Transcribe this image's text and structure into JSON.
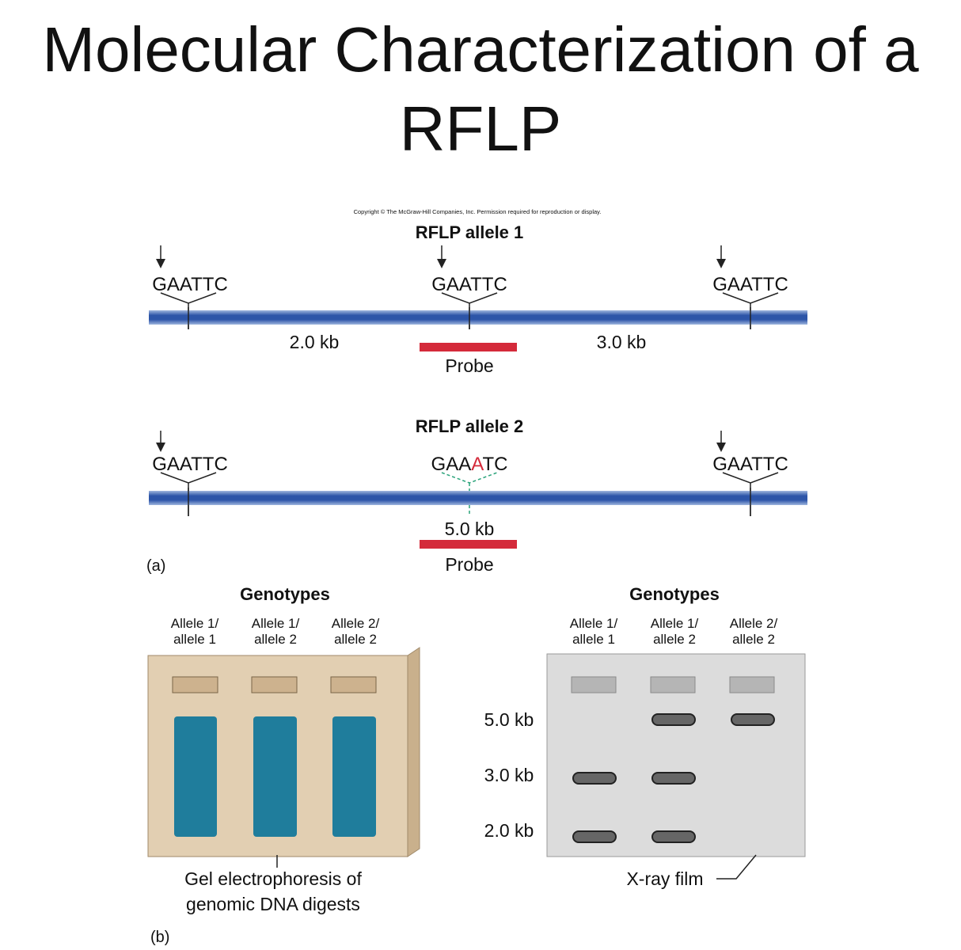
{
  "title": {
    "lines": [
      "Molecular Characterization of a",
      "RFLP"
    ]
  },
  "copyright": "Copyright © The McGraw-Hill Companies, Inc. Permission required for reproduction or display.",
  "panel_a": {
    "label": "(a)",
    "allele1": {
      "title": "RFLP allele 1",
      "sites": [
        "GAATTC",
        "GAATTC",
        "GAATTC"
      ],
      "fragments": [
        "2.0 kb",
        "3.0 kb"
      ],
      "probe": "Probe"
    },
    "allele2": {
      "title": "RFLP allele 2",
      "sites": [
        "GAATTC",
        "GAATTC"
      ],
      "mutated_site": [
        "GAA",
        "A",
        "TC"
      ],
      "fragment": "5.0 kb",
      "probe": "Probe"
    }
  },
  "panel_b": {
    "label": "(b)",
    "gel": {
      "heading": "Genotypes",
      "lanes": [
        [
          "Allele 1/",
          "allele 1"
        ],
        [
          "Allele 1/",
          "allele 2"
        ],
        [
          "Allele 2/",
          "allele 2"
        ]
      ],
      "caption": [
        "Gel electrophoresis of",
        "genomic DNA digests"
      ]
    },
    "film": {
      "heading": "Genotypes",
      "lanes": [
        [
          "Allele 1/",
          "allele 1"
        ],
        [
          "Allele 1/",
          "allele 2"
        ],
        [
          "Allele 2/",
          "allele 2"
        ]
      ],
      "sizes": [
        "5.0 kb",
        "3.0 kb",
        "2.0 kb"
      ],
      "caption": "X-ray film"
    }
  }
}
